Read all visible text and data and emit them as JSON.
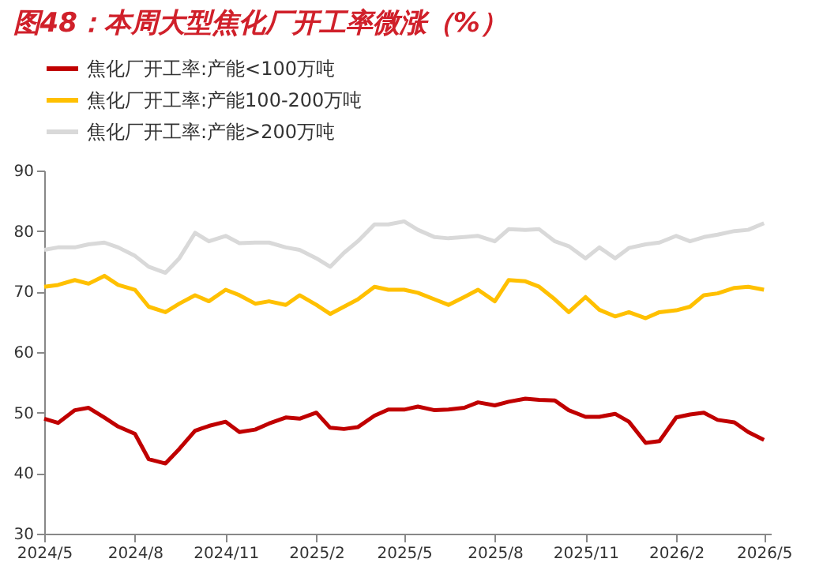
{
  "chart_data": {
    "type": "line",
    "title": "图48：本周大型焦化厂开工率微涨（%）",
    "x": [
      "2024-05-01",
      "2024-05-15",
      "2024-06-01",
      "2024-06-15",
      "2024-07-01",
      "2024-07-15",
      "2024-08-01",
      "2024-08-15",
      "2024-09-01",
      "2024-09-15",
      "2024-10-01",
      "2024-10-15",
      "2024-11-01",
      "2024-11-15",
      "2024-12-01",
      "2024-12-15",
      "2025-01-01",
      "2025-01-15",
      "2025-02-01",
      "2025-02-15",
      "2025-03-01",
      "2025-03-15",
      "2025-04-01",
      "2025-04-15",
      "2025-05-01",
      "2025-05-15",
      "2025-06-01",
      "2025-06-15",
      "2025-07-01",
      "2025-07-15",
      "2025-08-01",
      "2025-08-15",
      "2025-09-01",
      "2025-09-15",
      "2025-10-01",
      "2025-10-15",
      "2025-11-01",
      "2025-11-15",
      "2025-12-01",
      "2025-12-15",
      "2026-01-01",
      "2026-01-15",
      "2026-02-01",
      "2026-02-15",
      "2026-03-01",
      "2026-03-15",
      "2026-04-01",
      "2026-04-15",
      "2026-05-01"
    ],
    "series": [
      {
        "name": "焦化厂开工率:产能<100万吨",
        "color": "#c00000",
        "values": [
          49,
          48.3,
          50.4,
          50.8,
          49.2,
          47.7,
          46.5,
          42.3,
          41.6,
          44,
          47,
          47.8,
          48.5,
          46.8,
          47.2,
          48.2,
          49.2,
          49,
          50,
          47.5,
          47.3,
          47.6,
          49.5,
          50.5,
          50.5,
          51,
          50.4,
          50.5,
          50.8,
          51.7,
          51.2,
          51.8,
          52.3,
          52.1,
          52,
          50.4,
          49.3,
          49.3,
          49.8,
          48.5,
          45,
          45.3,
          49.2,
          49.7,
          50,
          48.8,
          48.4,
          46.8,
          45.5
        ]
      },
      {
        "name": "焦化厂开工率:产能100-200万吨",
        "color": "#ffc000",
        "values": [
          70.8,
          71.1,
          71.9,
          71.3,
          72.6,
          71.1,
          70.3,
          67.5,
          66.6,
          68,
          69.4,
          68.4,
          70.3,
          69.4,
          68,
          68.4,
          67.8,
          69.4,
          67.8,
          66.3,
          67.5,
          68.7,
          70.8,
          70.3,
          70.3,
          69.8,
          68.7,
          67.8,
          69.1,
          70.3,
          68.4,
          71.9,
          71.7,
          70.8,
          68.7,
          66.6,
          69.1,
          67,
          65.9,
          66.6,
          65.6,
          66.6,
          66.9,
          67.5,
          69.4,
          69.7,
          70.6,
          70.8,
          70.3
        ]
      },
      {
        "name": "焦化厂开工率:产能>200万吨",
        "color": "#d9d9d9",
        "values": [
          76.9,
          77.3,
          77.3,
          77.8,
          78.1,
          77.3,
          75.9,
          74.1,
          73.1,
          75.5,
          79.7,
          78.3,
          79.2,
          78,
          78.1,
          78.1,
          77.3,
          76.9,
          75.5,
          74.1,
          76.4,
          78.3,
          81.1,
          81.1,
          81.6,
          80.2,
          79,
          78.8,
          79,
          79.2,
          78.3,
          80.3,
          80.2,
          80.3,
          78.3,
          77.5,
          75.5,
          77.3,
          75.5,
          77.2,
          77.8,
          78.1,
          79.2,
          78.3,
          79,
          79.4,
          80,
          80.2,
          81.3
        ]
      }
    ],
    "xlim": [
      "2024-05-01",
      "2026-05-08"
    ],
    "xticks": [
      {
        "value": "2024-05-01",
        "label": "2024/5"
      },
      {
        "value": "2024-08-01",
        "label": "2024/8"
      },
      {
        "value": "2024-11-01",
        "label": "2024/11"
      },
      {
        "value": "2025-02-01",
        "label": "2025/2"
      },
      {
        "value": "2025-05-01",
        "label": "2025/5"
      },
      {
        "value": "2025-08-01",
        "label": "2025/8"
      },
      {
        "value": "2025-11-01",
        "label": "2025/11"
      },
      {
        "value": "2026-02-01",
        "label": "2026/2"
      },
      {
        "value": "2026-05-01",
        "label": "2026/5"
      }
    ],
    "ylim": [
      30,
      90
    ],
    "yticks": [
      30,
      40,
      50,
      60,
      70,
      80,
      90
    ],
    "grid": false,
    "legend": "top",
    "marker": "none",
    "line_style": "solid"
  }
}
